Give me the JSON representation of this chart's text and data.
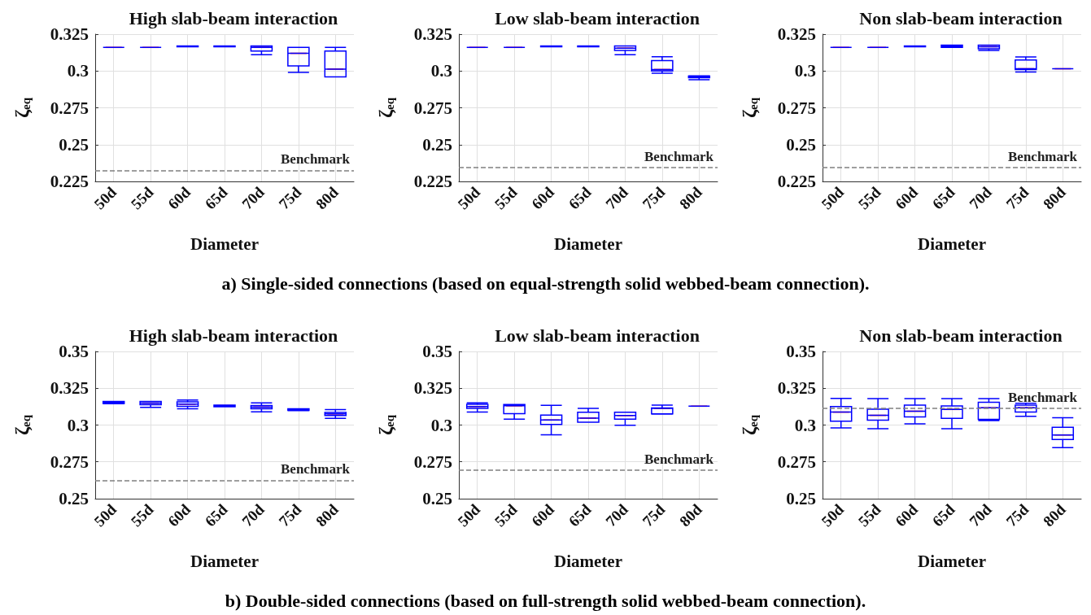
{
  "chart_data": [
    {
      "type": "box",
      "title": "High slab-beam interaction",
      "xlabel": "Diameter",
      "ylabel": "ζ$_{eq}$",
      "categories": [
        "50d",
        "55d",
        "60d",
        "65d",
        "70d",
        "75d",
        "80d"
      ],
      "ylim": [
        0.225,
        0.325
      ],
      "yticks": [
        0.225,
        0.25,
        0.275,
        0.3,
        0.325
      ],
      "grid": true,
      "ref_lines": [
        {
          "axis": "y",
          "value": 0.2325,
          "label": "Benchmark",
          "color": "#808080",
          "line_style": "dashed"
        }
      ],
      "series": [
        {
          "color": "#0000ff",
          "boxes": [
            {
              "low": 0.316,
              "q1": 0.316,
              "median": 0.316,
              "q3": 0.316,
              "high": 0.316
            },
            {
              "low": 0.316,
              "q1": 0.316,
              "median": 0.316,
              "q3": 0.316,
              "high": 0.316
            },
            {
              "low": 0.3165,
              "q1": 0.3165,
              "median": 0.3167,
              "q3": 0.317,
              "high": 0.317
            },
            {
              "low": 0.3165,
              "q1": 0.3165,
              "median": 0.3167,
              "q3": 0.317,
              "high": 0.317
            },
            {
              "low": 0.311,
              "q1": 0.3135,
              "median": 0.316,
              "q3": 0.317,
              "high": 0.317
            },
            {
              "low": 0.299,
              "q1": 0.3035,
              "median": 0.312,
              "q3": 0.316,
              "high": 0.316
            },
            {
              "low": 0.296,
              "q1": 0.296,
              "median": 0.3013,
              "q3": 0.3135,
              "high": 0.316
            }
          ]
        }
      ]
    },
    {
      "type": "box",
      "title": "Low slab-beam interaction",
      "xlabel": "Diameter",
      "ylabel": "ζ$_{eq}$",
      "categories": [
        "50d",
        "55d",
        "60d",
        "65d",
        "70d",
        "75d",
        "80d"
      ],
      "ylim": [
        0.225,
        0.325
      ],
      "yticks": [
        0.225,
        0.25,
        0.275,
        0.3,
        0.325
      ],
      "grid": true,
      "ref_lines": [
        {
          "axis": "y",
          "value": 0.2345,
          "label": "Benchmark",
          "color": "#808080",
          "line_style": "dashed"
        }
      ],
      "annotations": [
        "a) Single-sided connections (based on equal-strength solid webbed-beam connection)."
      ],
      "series": [
        {
          "color": "#0000ff",
          "boxes": [
            {
              "low": 0.316,
              "q1": 0.316,
              "median": 0.316,
              "q3": 0.316,
              "high": 0.316
            },
            {
              "low": 0.316,
              "q1": 0.316,
              "median": 0.316,
              "q3": 0.316,
              "high": 0.316
            },
            {
              "low": 0.3165,
              "q1": 0.3165,
              "median": 0.3167,
              "q3": 0.317,
              "high": 0.317
            },
            {
              "low": 0.3165,
              "q1": 0.3165,
              "median": 0.3167,
              "q3": 0.317,
              "high": 0.317
            },
            {
              "low": 0.311,
              "q1": 0.314,
              "median": 0.3155,
              "q3": 0.317,
              "high": 0.317
            },
            {
              "low": 0.2985,
              "q1": 0.3,
              "median": 0.301,
              "q3": 0.307,
              "high": 0.3097
            },
            {
              "low": 0.294,
              "q1": 0.2955,
              "median": 0.296,
              "q3": 0.2965,
              "high": 0.2967
            }
          ]
        }
      ]
    },
    {
      "type": "box",
      "title": "Non slab-beam interaction",
      "xlabel": "Diameter",
      "ylabel": "ζ$_{eq}$",
      "categories": [
        "50d",
        "55d",
        "60d",
        "65d",
        "70d",
        "75d",
        "80d"
      ],
      "ylim": [
        0.225,
        0.325
      ],
      "yticks": [
        0.225,
        0.25,
        0.275,
        0.3,
        0.325
      ],
      "grid": true,
      "ref_lines": [
        {
          "axis": "y",
          "value": 0.2345,
          "label": "Benchmark",
          "color": "#808080",
          "line_style": "dashed"
        }
      ],
      "series": [
        {
          "color": "#0000ff",
          "boxes": [
            {
              "low": 0.316,
              "q1": 0.316,
              "median": 0.316,
              "q3": 0.316,
              "high": 0.316
            },
            {
              "low": 0.316,
              "q1": 0.316,
              "median": 0.316,
              "q3": 0.316,
              "high": 0.316
            },
            {
              "low": 0.3165,
              "q1": 0.3165,
              "median": 0.3167,
              "q3": 0.317,
              "high": 0.317
            },
            {
              "low": 0.316,
              "q1": 0.316,
              "median": 0.3167,
              "q3": 0.3175,
              "high": 0.3175
            },
            {
              "low": 0.314,
              "q1": 0.315,
              "median": 0.3165,
              "q3": 0.3175,
              "high": 0.3175
            },
            {
              "low": 0.2993,
              "q1": 0.301,
              "median": 0.3015,
              "q3": 0.3075,
              "high": 0.3095
            },
            {
              "low": 0.3015,
              "q1": 0.3015,
              "median": 0.3015,
              "q3": 0.3015,
              "high": 0.3015
            }
          ]
        }
      ]
    },
    {
      "type": "box",
      "title": "High slab-beam interaction",
      "xlabel": "Diameter",
      "ylabel": "ζ$_{eq}$",
      "categories": [
        "50d",
        "55d",
        "60d",
        "65d",
        "70d",
        "75d",
        "80d"
      ],
      "ylim": [
        0.25,
        0.35
      ],
      "yticks": [
        0.25,
        0.275,
        0.3,
        0.325,
        0.35
      ],
      "grid": true,
      "ref_lines": [
        {
          "axis": "y",
          "value": 0.2625,
          "label": "Benchmark",
          "color": "#808080",
          "line_style": "dashed"
        }
      ],
      "series": [
        {
          "color": "#0000ff",
          "boxes": [
            {
              "low": 0.3145,
              "q1": 0.3147,
              "median": 0.3155,
              "q3": 0.316,
              "high": 0.316
            },
            {
              "low": 0.312,
              "q1": 0.3138,
              "median": 0.3149,
              "q3": 0.316,
              "high": 0.316
            },
            {
              "low": 0.311,
              "q1": 0.3127,
              "median": 0.3142,
              "q3": 0.3157,
              "high": 0.317
            },
            {
              "low": 0.3125,
              "q1": 0.3125,
              "median": 0.3132,
              "q3": 0.3135,
              "high": 0.3135
            },
            {
              "low": 0.309,
              "q1": 0.311,
              "median": 0.3122,
              "q3": 0.3133,
              "high": 0.315
            },
            {
              "low": 0.3098,
              "q1": 0.31,
              "median": 0.3105,
              "q3": 0.311,
              "high": 0.311
            },
            {
              "low": 0.3046,
              "q1": 0.3065,
              "median": 0.3076,
              "q3": 0.3085,
              "high": 0.3105
            }
          ]
        }
      ]
    },
    {
      "type": "box",
      "title": "Low slab-beam interaction",
      "xlabel": "Diameter",
      "ylabel": "ζ$_{eq}$",
      "categories": [
        "50d",
        "55d",
        "60d",
        "65d",
        "70d",
        "75d",
        "80d"
      ],
      "ylim": [
        0.25,
        0.35
      ],
      "yticks": [
        0.25,
        0.275,
        0.3,
        0.325,
        0.35
      ],
      "grid": true,
      "ref_lines": [
        {
          "axis": "y",
          "value": 0.2695,
          "label": "Benchmark",
          "color": "#808080",
          "line_style": "dashed"
        }
      ],
      "annotations": [
        "b) Double-sided connections (based on full-strength solid webbed-beam connection)."
      ],
      "series": [
        {
          "color": "#0000ff",
          "boxes": [
            {
              "low": 0.3088,
              "q1": 0.3113,
              "median": 0.3126,
              "q3": 0.3141,
              "high": 0.315
            },
            {
              "low": 0.304,
              "q1": 0.3078,
              "median": 0.3131,
              "q3": 0.314,
              "high": 0.314
            },
            {
              "low": 0.2934,
              "q1": 0.3004,
              "median": 0.3034,
              "q3": 0.3067,
              "high": 0.3134
            },
            {
              "low": 0.3019,
              "q1": 0.3019,
              "median": 0.3047,
              "q3": 0.3087,
              "high": 0.3113
            },
            {
              "low": 0.2999,
              "q1": 0.304,
              "median": 0.3065,
              "q3": 0.3087,
              "high": 0.3087
            },
            {
              "low": 0.3074,
              "q1": 0.3076,
              "median": 0.3113,
              "q3": 0.3116,
              "high": 0.3135
            },
            {
              "low": 0.3128,
              "q1": 0.3128,
              "median": 0.3128,
              "q3": 0.3128,
              "high": 0.3128
            }
          ]
        }
      ]
    },
    {
      "type": "box",
      "title": "Non slab-beam interaction",
      "xlabel": "Diameter",
      "ylabel": "ζ$_{eq}$",
      "categories": [
        "50d",
        "55d",
        "60d",
        "65d",
        "70d",
        "75d",
        "80d"
      ],
      "ylim": [
        0.25,
        0.35
      ],
      "yticks": [
        0.25,
        0.275,
        0.3,
        0.325,
        0.35
      ],
      "grid": true,
      "ref_lines": [
        {
          "axis": "y",
          "value": 0.3115,
          "label": "Benchmark",
          "color": "#808080",
          "line_style": "dashed"
        }
      ],
      "series": [
        {
          "color": "#0000ff",
          "boxes": [
            {
              "low": 0.298,
              "q1": 0.3026,
              "median": 0.3088,
              "q3": 0.3126,
              "high": 0.3181
            },
            {
              "low": 0.2975,
              "q1": 0.3033,
              "median": 0.3066,
              "q3": 0.3108,
              "high": 0.318
            },
            {
              "low": 0.3008,
              "q1": 0.3055,
              "median": 0.3094,
              "q3": 0.3135,
              "high": 0.318
            },
            {
              "low": 0.2975,
              "q1": 0.3046,
              "median": 0.3106,
              "q3": 0.313,
              "high": 0.318
            },
            {
              "low": 0.303,
              "q1": 0.3039,
              "median": 0.3117,
              "q3": 0.3155,
              "high": 0.318
            },
            {
              "low": 0.3059,
              "q1": 0.3088,
              "median": 0.3117,
              "q3": 0.3135,
              "high": 0.3148
            },
            {
              "low": 0.2846,
              "q1": 0.2902,
              "median": 0.2933,
              "q3": 0.2985,
              "high": 0.305
            }
          ]
        }
      ]
    }
  ]
}
